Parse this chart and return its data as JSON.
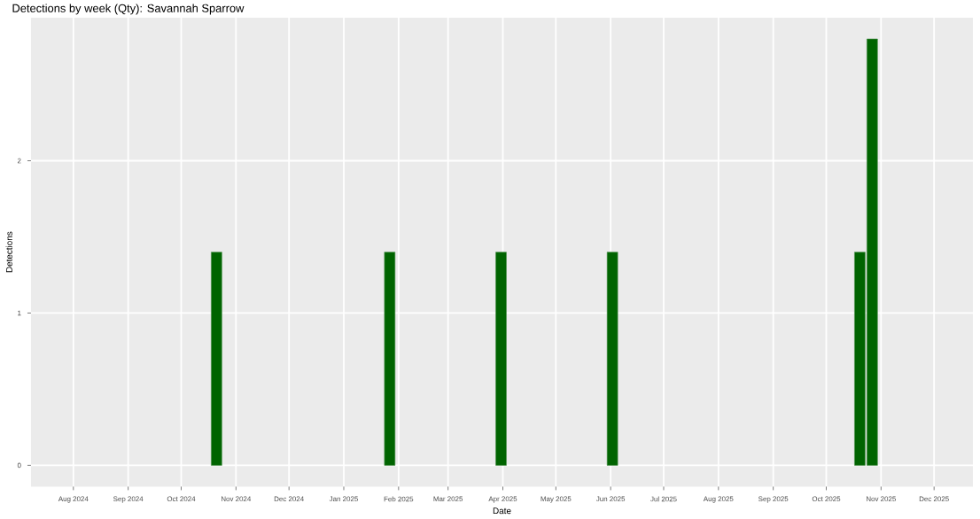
{
  "chart_data": {
    "type": "bar",
    "title": "Detections by week (Qty): Savannah Sparrow",
    "xlabel": "Date",
    "ylabel": "Detections",
    "x": [
      "2024-10-21",
      "2025-01-27",
      "2025-03-31",
      "2025-06-02",
      "2025-10-20",
      "2025-10-27"
    ],
    "values": [
      1.4,
      1.4,
      1.4,
      1.4,
      1.4,
      2.8
    ],
    "color": "#006400",
    "xlim": [
      "2024-07-08",
      "2025-12-23"
    ],
    "xticks": [
      {
        "value": "2024-08-01",
        "label": "Aug 2024"
      },
      {
        "value": "2024-09-01",
        "label": "Sep 2024"
      },
      {
        "value": "2024-10-01",
        "label": "Oct 2024"
      },
      {
        "value": "2024-11-01",
        "label": "Nov 2024"
      },
      {
        "value": "2024-12-01",
        "label": "Dec 2024"
      },
      {
        "value": "2025-01-01",
        "label": "Jan 2025"
      },
      {
        "value": "2025-02-01",
        "label": "Feb 2025"
      },
      {
        "value": "2025-03-01",
        "label": "Mar 2025"
      },
      {
        "value": "2025-04-01",
        "label": "Apr 2025"
      },
      {
        "value": "2025-05-01",
        "label": "May 2025"
      },
      {
        "value": "2025-06-01",
        "label": "Jun 2025"
      },
      {
        "value": "2025-07-01",
        "label": "Jul 2025"
      },
      {
        "value": "2025-08-01",
        "label": "Aug 2025"
      },
      {
        "value": "2025-09-01",
        "label": "Sep 2025"
      },
      {
        "value": "2025-10-01",
        "label": "Oct 2025"
      },
      {
        "value": "2025-11-01",
        "label": "Nov 2025"
      },
      {
        "value": "2025-12-01",
        "label": "Dec 2025"
      }
    ],
    "ylim": [
      -0.14,
      2.94
    ],
    "yticks": [
      0,
      1,
      2
    ],
    "grid": true
  }
}
